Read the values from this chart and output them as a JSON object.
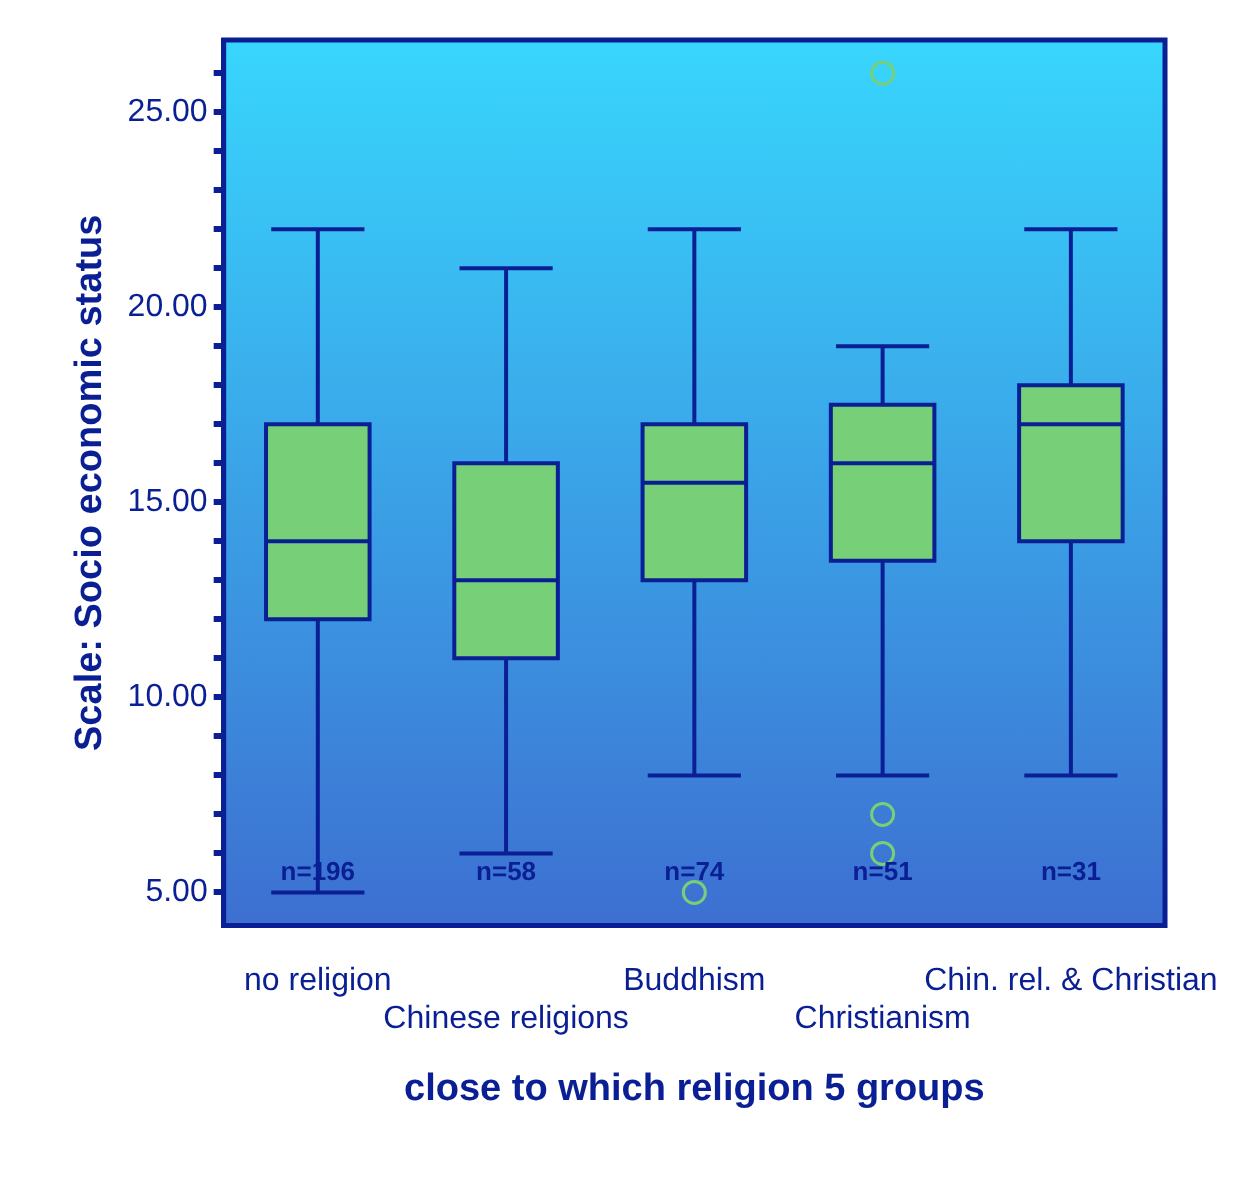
{
  "chart_data": {
    "type": "box",
    "xlabel": "close to which religion 5 groups",
    "ylabel": "Scale: Socio economic status",
    "categories": [
      "no religion",
      "Chinese religions",
      "Buddhism",
      "Christianism",
      "Chin. rel. & Christian"
    ],
    "color": "#77d077",
    "boxes": [
      {
        "low": 5,
        "q1": 12,
        "median": 14,
        "q3": 17,
        "high": 22
      },
      {
        "low": 6,
        "q1": 11,
        "median": 13,
        "q3": 16,
        "high": 21
      },
      {
        "low": 8,
        "q1": 13,
        "median": 15.5,
        "q3": 17,
        "high": 22,
        "outliers": [
          5
        ]
      },
      {
        "low": 8,
        "q1": 13.5,
        "median": 16,
        "q3": 17.5,
        "high": 19,
        "outliers": [
          26,
          7,
          6
        ]
      },
      {
        "low": 8,
        "q1": 14,
        "median": 17,
        "q3": 18,
        "high": 22
      }
    ],
    "ylim": [
      4.15,
      26.85
    ],
    "yticks": [
      {
        "value": 5,
        "label": "5.00"
      },
      {
        "value": 6,
        "label": null
      },
      {
        "value": 7,
        "label": null
      },
      {
        "value": 8,
        "label": null
      },
      {
        "value": 9,
        "label": null
      },
      {
        "value": 10,
        "label": "10.00"
      },
      {
        "value": 11,
        "label": null
      },
      {
        "value": 12,
        "label": null
      },
      {
        "value": 13,
        "label": null
      },
      {
        "value": 14,
        "label": null
      },
      {
        "value": 15,
        "label": "15.00"
      },
      {
        "value": 16,
        "label": null
      },
      {
        "value": 17,
        "label": null
      },
      {
        "value": 18,
        "label": null
      },
      {
        "value": 19,
        "label": null
      },
      {
        "value": 20,
        "label": "20.00"
      },
      {
        "value": 21,
        "label": null
      },
      {
        "value": 22,
        "label": null
      },
      {
        "value": 23,
        "label": null
      },
      {
        "value": 24,
        "label": null
      },
      {
        "value": 25,
        "label": "25.00"
      },
      {
        "value": 26,
        "label": null
      }
    ],
    "annotations": [
      "n=196",
      "n=58",
      "n=74",
      "n=51",
      "n=31"
    ]
  }
}
